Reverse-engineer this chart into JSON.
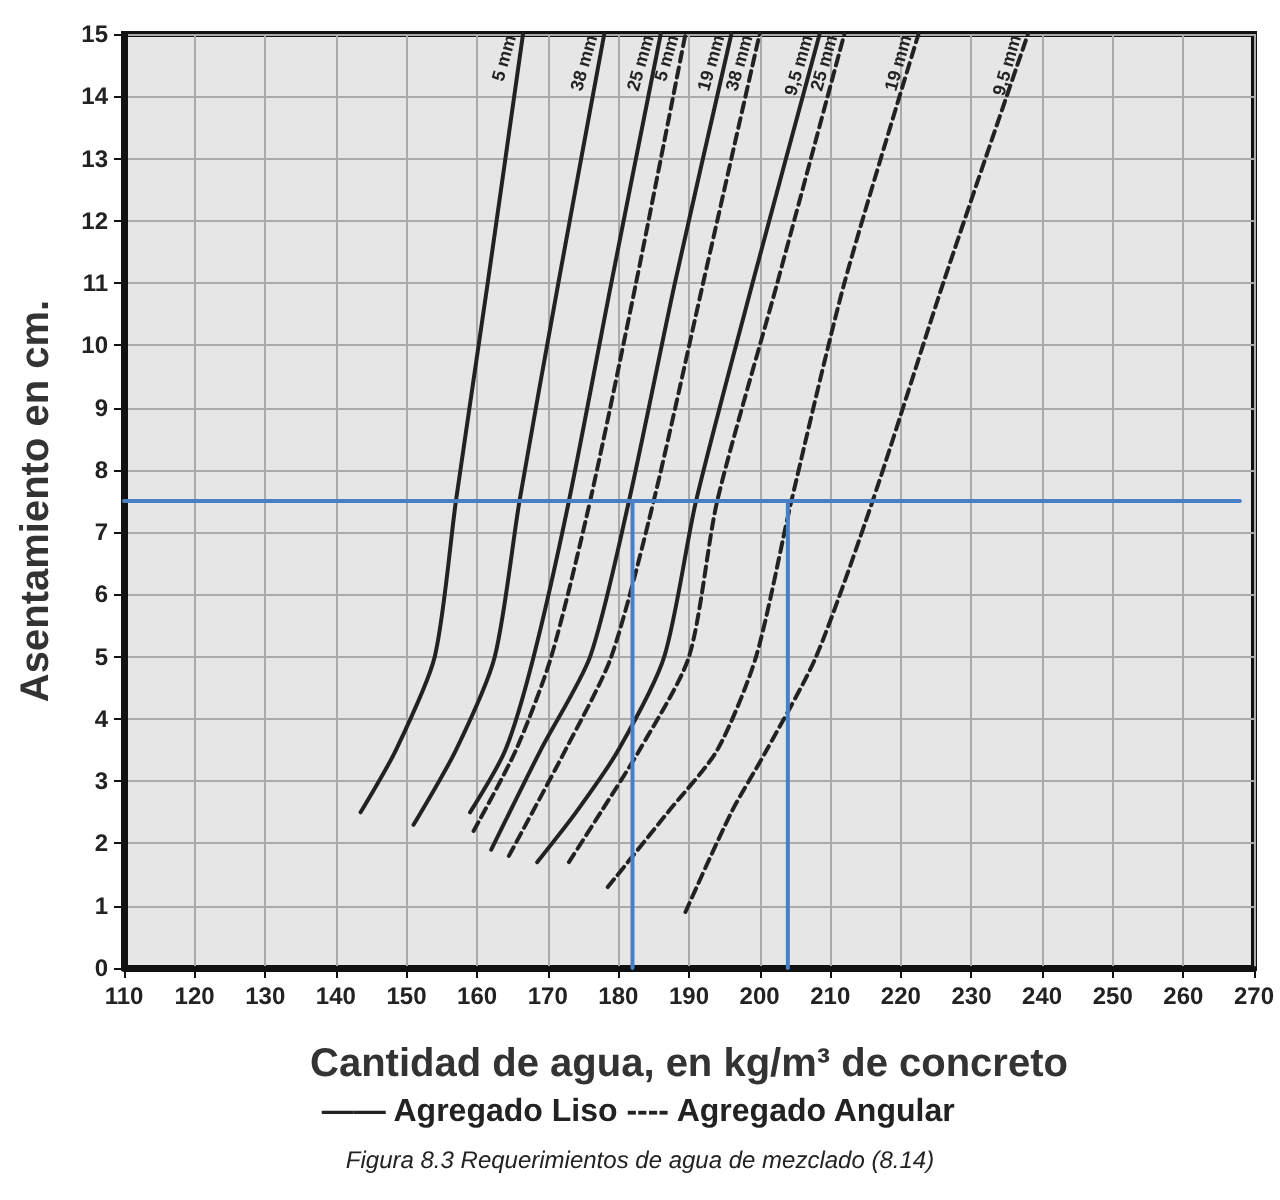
{
  "chart_data": {
    "type": "line",
    "xlabel": "Cantidad de agua, en kg/m³ de concreto",
    "ylabel": "Asentamiento en cm.",
    "xlim": [
      110,
      270
    ],
    "xticks": [
      110,
      120,
      130,
      140,
      150,
      160,
      170,
      180,
      190,
      200,
      210,
      220,
      230,
      240,
      250,
      260,
      270
    ],
    "ylim": [
      0,
      15
    ],
    "yticks": [
      0,
      1,
      2,
      3,
      4,
      5,
      6,
      7,
      8,
      9,
      10,
      11,
      12,
      13,
      14,
      15
    ],
    "grid": true,
    "series": [
      {
        "name": "5 mm",
        "color": "#222222",
        "line_style": "solid",
        "x": [
          143.5,
          148.5,
          154,
          157,
          161.5,
          166.5
        ],
        "values": [
          2.5,
          3.5,
          5,
          7.5,
          11,
          15
        ]
      },
      {
        "name": "38 mm",
        "color": "#222222",
        "line_style": "solid",
        "x": [
          151,
          157,
          162.5,
          166,
          171.5,
          178
        ],
        "values": [
          2.3,
          3.5,
          5,
          7.5,
          11,
          15
        ]
      },
      {
        "name": "25 mm",
        "color": "#222222",
        "line_style": "solid",
        "x": [
          159,
          164,
          168,
          173,
          179,
          186
        ],
        "values": [
          2.5,
          3.5,
          5,
          7.5,
          11,
          15
        ]
      },
      {
        "name": "5 mm",
        "color": "#222222",
        "line_style": "dashed",
        "x": [
          159.5,
          165.5,
          170.5,
          176,
          182.5,
          189.5
        ],
        "values": [
          2.2,
          3.5,
          5,
          7.5,
          11,
          15
        ]
      },
      {
        "name": "19 mm",
        "color": "#222222",
        "line_style": "solid",
        "x": [
          162,
          169,
          176,
          181.5,
          188,
          196
        ],
        "values": [
          1.9,
          3.5,
          5,
          7.5,
          11,
          15
        ]
      },
      {
        "name": "38 mm",
        "color": "#222222",
        "line_style": "dashed",
        "x": [
          164.5,
          172.5,
          179,
          185,
          192,
          200
        ],
        "values": [
          1.8,
          3.5,
          5,
          7.5,
          11,
          15
        ]
      },
      {
        "name": "9,5 mm",
        "color": "#222222",
        "line_style": "solid",
        "x": [
          168.5,
          174,
          180,
          186.5,
          191,
          199,
          208.5
        ],
        "values": [
          1.7,
          2.5,
          3.5,
          5,
          7.5,
          11,
          15
        ]
      },
      {
        "name": "25 mm",
        "color": "#222222",
        "line_style": "dashed",
        "x": [
          173,
          177.5,
          183,
          190,
          194,
          202.5,
          212
        ],
        "values": [
          1.7,
          2.5,
          3.5,
          5,
          7.5,
          11,
          15
        ]
      },
      {
        "name": "19 mm",
        "color": "#222222",
        "line_style": "dashed",
        "x": [
          178.5,
          187,
          194,
          199.5,
          204.5,
          212,
          222.5
        ],
        "values": [
          1.3,
          2.5,
          3.5,
          5,
          7.5,
          11,
          15
        ]
      },
      {
        "name": "9,5 mm",
        "color": "#222222",
        "line_style": "dashed",
        "x": [
          189.5,
          196,
          201,
          208,
          216,
          226,
          238
        ],
        "values": [
          0.9,
          2.5,
          3.5,
          5,
          7.5,
          11,
          15
        ]
      },
      {
        "color": "#4a7fc4",
        "line_style": "solid",
        "x": [
          110,
          268
        ],
        "values": [
          7.5,
          7.5
        ]
      },
      {
        "color": "#4a7fc4",
        "line_style": "solid",
        "x": [
          182,
          182
        ],
        "values": [
          0,
          7.5
        ]
      },
      {
        "color": "#4a7fc4",
        "line_style": "solid",
        "x": [
          204,
          204
        ],
        "values": [
          0,
          7.5
        ]
      }
    ],
    "annotations": [
      "—— Agregado Liso ---- Agregado Angular",
      "Figura 8.3 Requerimientos de agua de mezclado (8.14)"
    ]
  }
}
